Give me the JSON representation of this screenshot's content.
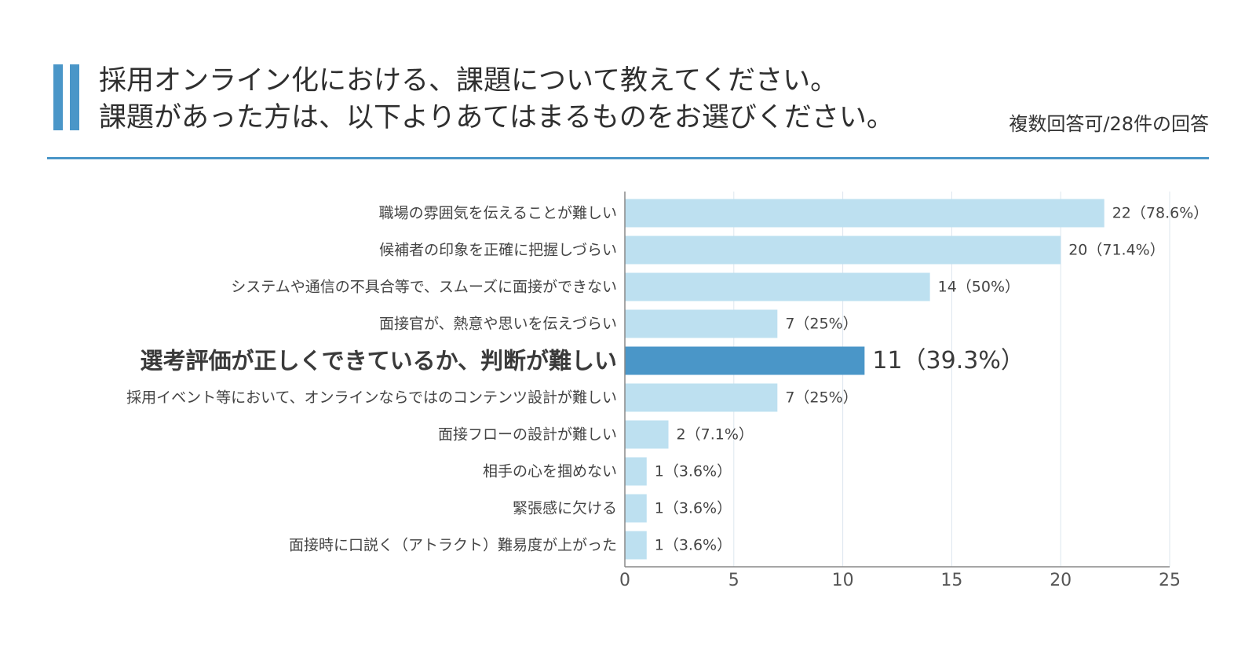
{
  "header": {
    "title_line1": "採用オンライン化における、課題について教えてください。",
    "title_line2": "課題があった方は、以下よりあてはまるものをお選びください。",
    "note": "複数回答可/28件の回答"
  },
  "colors": {
    "accent": "#4a96c8",
    "bar": "#bde0f0",
    "bar_highlight": "#4a96c8"
  },
  "chart_data": {
    "type": "bar",
    "orientation": "horizontal",
    "categories": [
      "職場の雰囲気を伝えることが難しい",
      "候補者の印象を正確に把握しづらい",
      "システムや通信の不具合等で、スムーズに面接ができない",
      "面接官が、熱意や思いを伝えづらい",
      "選考評価が正しくできているか、判断が難しい",
      "採用イベント等において、オンラインならではのコンテンツ設計が難しい",
      "面接フローの設計が難しい",
      "相手の心を掴めない",
      "緊張感に欠ける",
      "面接時に口説く（アトラクト）難易度が上がった"
    ],
    "values": [
      22,
      20,
      14,
      7,
      11,
      7,
      2,
      1,
      1,
      1
    ],
    "data_labels": [
      "22（78.6%）",
      "20（71.4%）",
      "14（50%）",
      "7（25%）",
      "11（39.3%）",
      "7（25%）",
      "2（7.1%）",
      "1（3.6%）",
      "1（3.6%）",
      "1（3.6%）"
    ],
    "highlight_index": 4,
    "xlim": [
      0,
      25
    ],
    "xticks": [
      0,
      5,
      10,
      15,
      20,
      25
    ],
    "grid": true
  }
}
